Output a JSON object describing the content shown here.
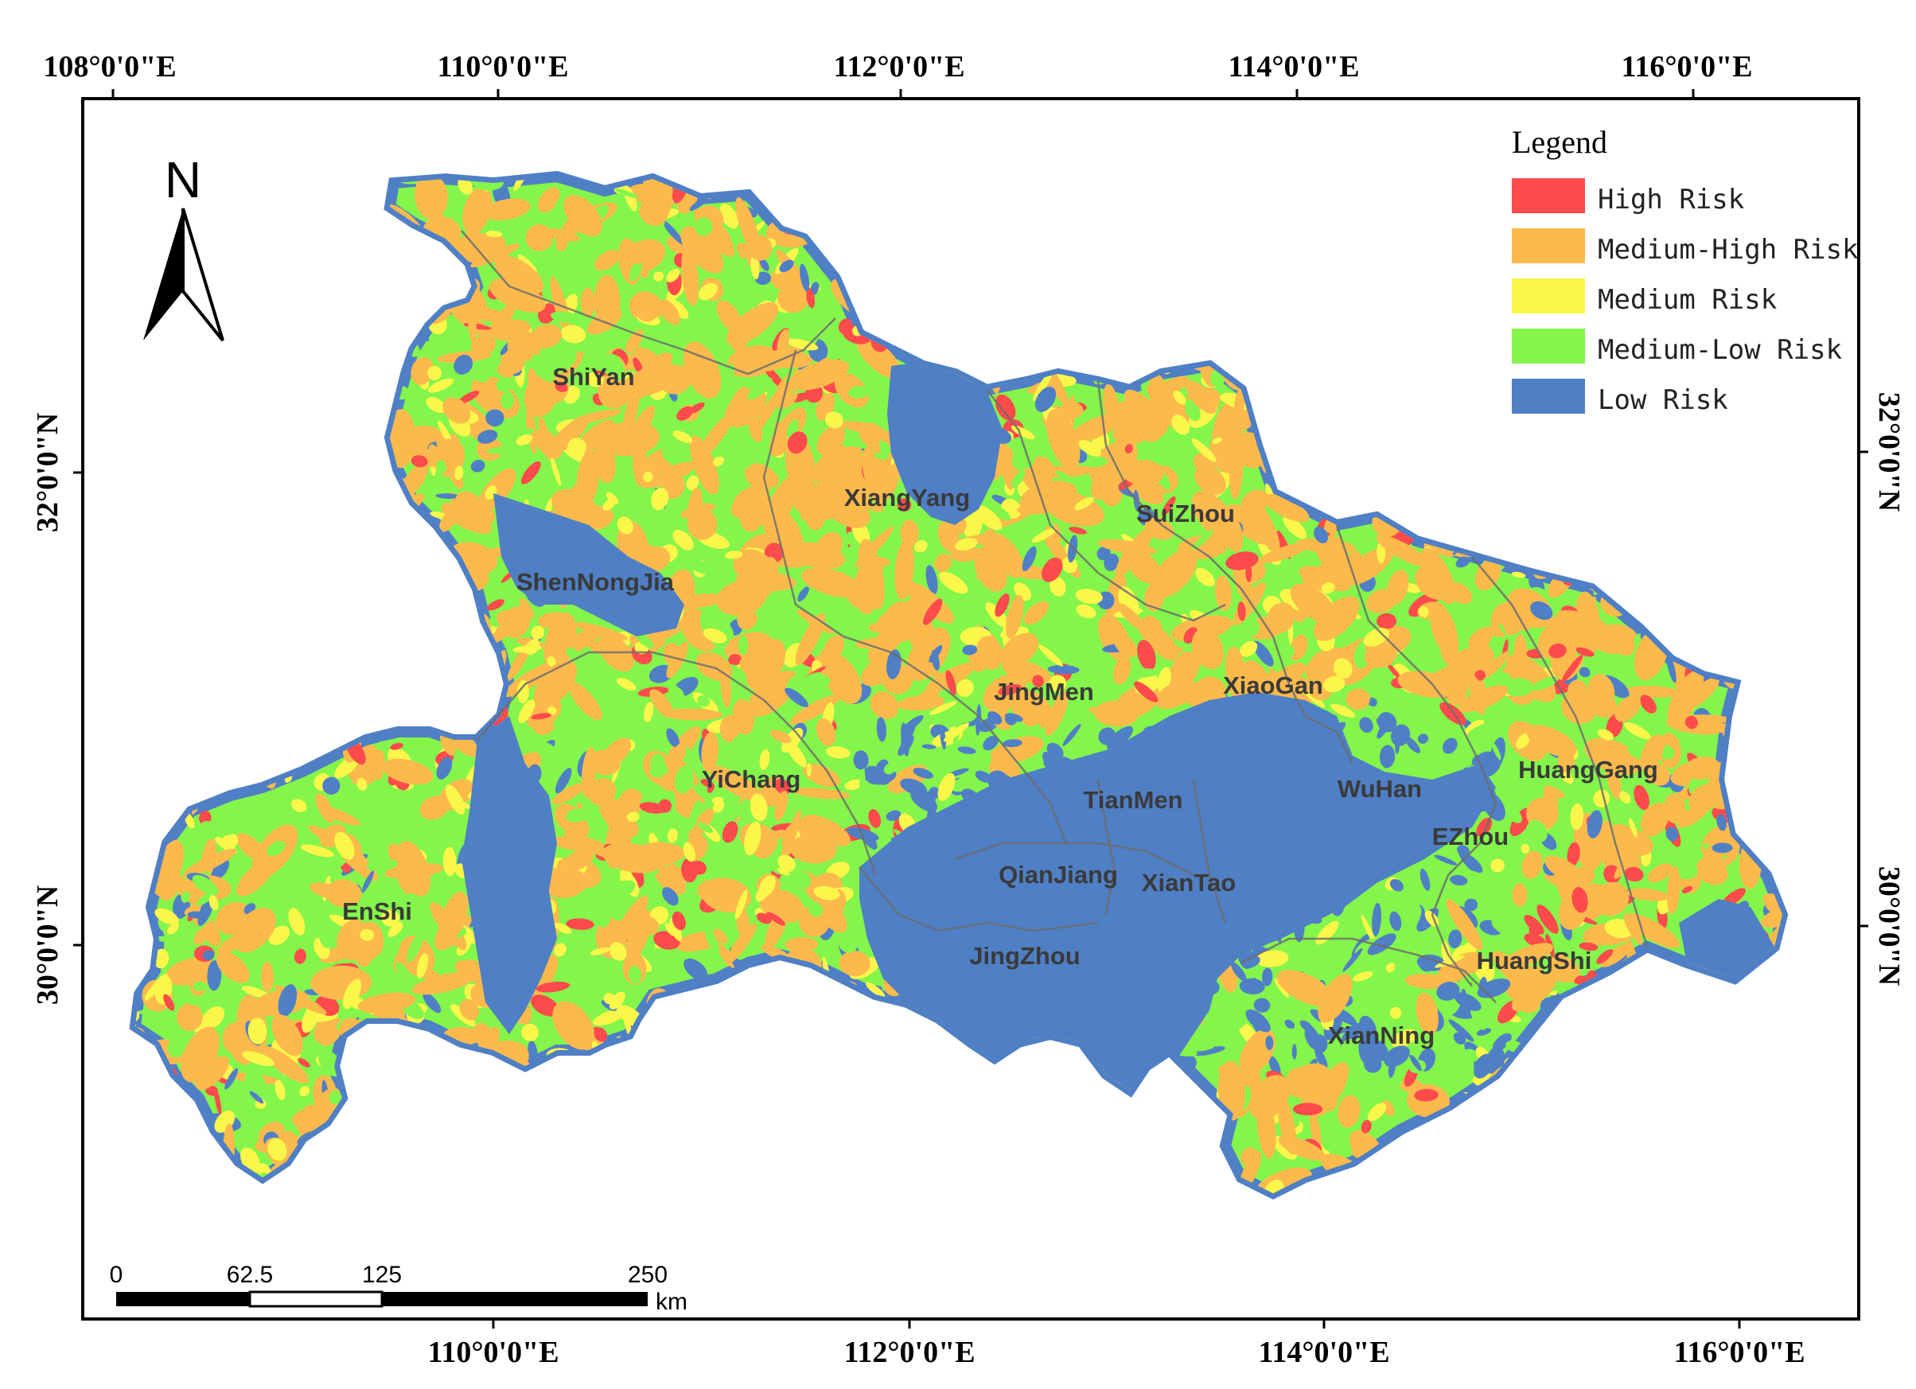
{
  "map": {
    "top_lon_labels": [
      "108°0'0\"E",
      "110°0'0\"E",
      "112°0'0\"E",
      "114°0'0\"E",
      "116°0'0\"E"
    ],
    "bottom_lon_labels": [
      "110°0'0\"E",
      "112°0'0\"E",
      "114°0'0\"E",
      "116°0'0\"E"
    ],
    "left_lat_labels": [
      "32°0'0\"N",
      "30°0'0\"N"
    ],
    "right_lat_labels": [
      "32°0'0\"N",
      "30°0'0\"N"
    ],
    "north_arrow": {
      "label": "N",
      "icon": "north-arrow-icon"
    },
    "legend": {
      "title": "Legend",
      "items": [
        {
          "label": "High Risk",
          "color": "#ff4b4b"
        },
        {
          "label": "Medium-High Risk",
          "color": "#fcba4c"
        },
        {
          "label": "Medium Risk",
          "color": "#fbf74a"
        },
        {
          "label": "Medium-Low Risk",
          "color": "#84f54a"
        },
        {
          "label": "Low Risk",
          "color": "#4f7fc5"
        }
      ]
    },
    "scale_bar": {
      "ticks": [
        "0",
        "62.5",
        "125",
        "250"
      ],
      "unit": "km"
    },
    "cities": [
      "ShiYan",
      "XiangYang",
      "SuiZhou",
      "ShenNongJia",
      "JingMen",
      "XiaoGan",
      "YiChang",
      "TianMen",
      "WuHan",
      "HuangGang",
      "EZhou",
      "EnShi",
      "QianJiang",
      "XianTao",
      "JingZhou",
      "HuangShi",
      "XianNing"
    ]
  }
}
